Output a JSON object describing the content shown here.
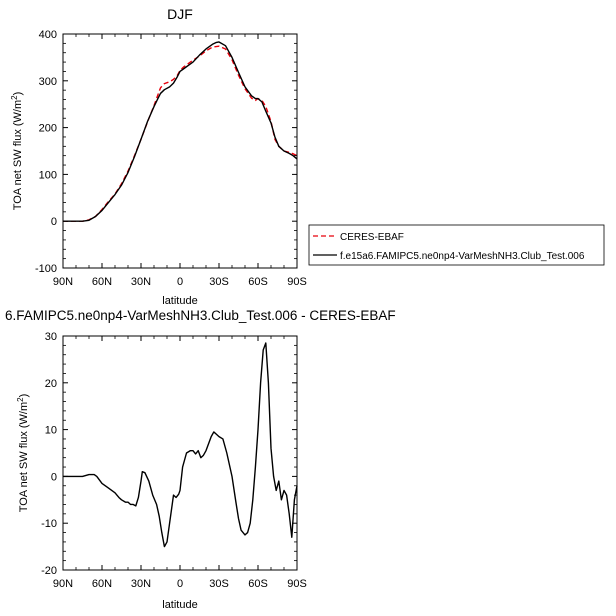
{
  "chart_data": [
    {
      "type": "line",
      "title": "DJF",
      "xlabel": "latitude",
      "ylabel_main": "TOA net SW flux (W/m",
      "ylabel_sup": "2",
      "ylabel_close": ")",
      "xlim": [
        -90,
        90
      ],
      "ylim": [
        -100,
        400
      ],
      "xticks": [
        -90,
        -60,
        -30,
        0,
        30,
        60,
        90
      ],
      "xtick_labels": [
        "90N",
        "60N",
        "30N",
        "0",
        "30S",
        "60S",
        "90S"
      ],
      "yticks": [
        -100,
        0,
        100,
        200,
        300,
        400
      ],
      "ytick_labels": [
        "-100",
        "0",
        "100",
        "200",
        "300",
        "400"
      ],
      "grid": false,
      "legend_position": "right",
      "series": [
        {
          "name": "CERES-EBAF",
          "color": "#e8000b",
          "dash": "dashed",
          "x": [
            -90,
            -80,
            -75,
            -70,
            -65,
            -60,
            -55,
            -50,
            -45,
            -40,
            -35,
            -30,
            -25,
            -20,
            -17,
            -15,
            -12,
            -8,
            -5,
            -2,
            0,
            3,
            6,
            10,
            15,
            20,
            25,
            30,
            35,
            40,
            45,
            50,
            55,
            58,
            60,
            63,
            66,
            70,
            73,
            76,
            80,
            84,
            87,
            90
          ],
          "y": [
            0,
            0,
            0,
            3,
            10,
            25,
            42,
            58,
            80,
            107,
            140,
            175,
            212,
            247,
            270,
            285,
            294,
            298,
            303,
            312,
            322,
            330,
            336,
            344,
            353,
            364,
            372,
            374,
            368,
            345,
            312,
            283,
            263,
            258,
            262,
            258,
            245,
            213,
            175,
            160,
            150,
            147,
            144,
            140
          ]
        },
        {
          "name": "f.e15a6.FAMIPC5.ne0np4-VarMeshNH3.Club_Test.006",
          "color": "#000000",
          "dash": "solid",
          "x": [
            -90,
            -80,
            -75,
            -70,
            -65,
            -60,
            -55,
            -50,
            -45,
            -40,
            -35,
            -30,
            -25,
            -20,
            -17,
            -15,
            -12,
            -8,
            -5,
            -2,
            0,
            3,
            6,
            10,
            15,
            20,
            25,
            28,
            30,
            35,
            40,
            45,
            50,
            55,
            58,
            60,
            63,
            66,
            70,
            73,
            76,
            80,
            84,
            87,
            90
          ],
          "y": [
            0,
            0,
            0,
            2,
            10,
            23,
            40,
            57,
            77,
            104,
            138,
            175,
            213,
            245,
            262,
            273,
            281,
            287,
            295,
            309,
            320,
            326,
            332,
            340,
            355,
            368,
            378,
            382,
            383,
            375,
            350,
            318,
            287,
            268,
            262,
            262,
            255,
            235,
            210,
            180,
            160,
            150,
            145,
            140,
            133
          ]
        }
      ]
    },
    {
      "type": "line",
      "title": "6.FAMIPC5.ne0np4-VarMeshNH3.Club_Test.006 - CERES-EBAF",
      "xlabel": "latitude",
      "ylabel_main": "TOA net SW flux (W/m",
      "ylabel_sup": "2",
      "ylabel_close": ")",
      "xlim": [
        -90,
        90
      ],
      "ylim": [
        -20,
        30
      ],
      "xticks": [
        -90,
        -60,
        -30,
        0,
        30,
        60,
        90
      ],
      "xtick_labels": [
        "90N",
        "60N",
        "30N",
        "0",
        "30S",
        "60S",
        "90S"
      ],
      "yticks": [
        -20,
        -10,
        0,
        10,
        20,
        30
      ],
      "ytick_labels": [
        "-20",
        "-10",
        "0",
        "10",
        "20",
        "30"
      ],
      "grid": false,
      "series": [
        {
          "color": "#000000",
          "dash": "solid",
          "x": [
            -90,
            -80,
            -75,
            -70,
            -66,
            -64,
            -60,
            -55,
            -50,
            -47,
            -45,
            -42,
            -40,
            -38,
            -36,
            -34,
            -32,
            -30,
            -29,
            -27,
            -24,
            -21,
            -18,
            -16,
            -14,
            -12,
            -10,
            -8,
            -6,
            -5,
            -3,
            -1,
            0,
            2,
            5,
            8,
            10,
            12,
            14,
            16,
            18,
            20,
            22,
            24,
            26,
            28,
            30,
            33,
            36,
            40,
            43,
            45,
            47,
            50,
            52,
            54,
            56,
            58,
            60,
            62,
            64,
            66,
            68,
            70,
            72,
            74,
            76,
            78,
            80,
            82,
            84,
            86,
            88,
            90
          ],
          "y": [
            0,
            0,
            0,
            0.4,
            0.4,
            0,
            -1.5,
            -2.5,
            -3.5,
            -4.5,
            -5,
            -5.5,
            -5.5,
            -6,
            -6,
            -6.3,
            -4.5,
            -1,
            1,
            0.8,
            -1,
            -4,
            -6,
            -8.5,
            -12,
            -15,
            -14,
            -10,
            -6,
            -4,
            -4.5,
            -3.8,
            -3,
            2,
            5,
            5.5,
            5.5,
            4.8,
            5.5,
            4,
            4.5,
            5.5,
            7,
            8.5,
            9.5,
            9,
            8.5,
            8,
            5,
            0,
            -5.5,
            -9,
            -11.5,
            -12.5,
            -12,
            -10,
            -5,
            2,
            10,
            20,
            27,
            28.5,
            20,
            6,
            0,
            -3,
            -1,
            -5,
            -3,
            -4,
            -8,
            -13,
            -5,
            -2
          ]
        }
      ]
    }
  ]
}
